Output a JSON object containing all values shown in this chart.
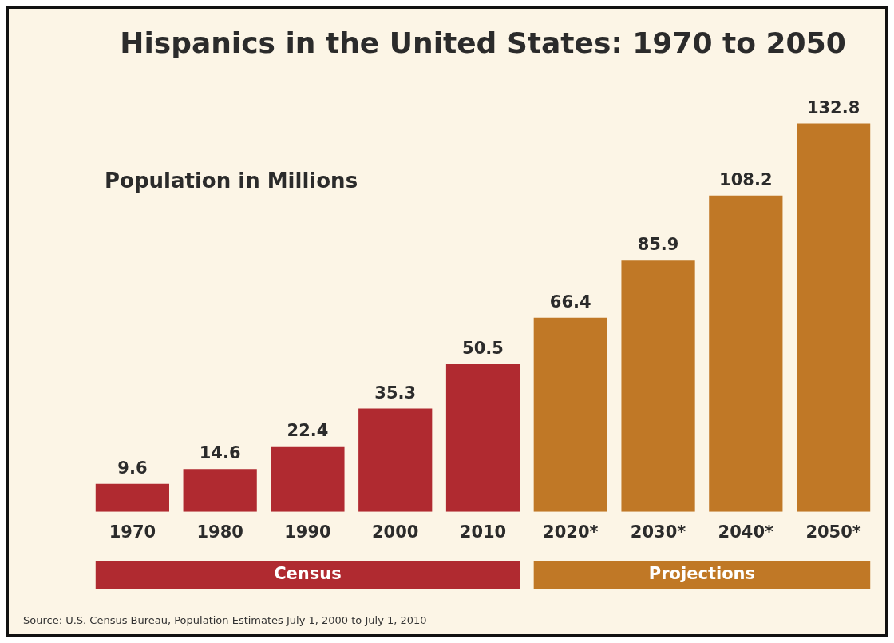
{
  "chart_data": {
    "type": "bar",
    "title": "Hispanics in the United States: 1970 to 2050",
    "subtitle": "Population in Millions",
    "categories": [
      "1970",
      "1980",
      "1990",
      "2000",
      "2010",
      "2020*",
      "2030*",
      "2040*",
      "2050*"
    ],
    "series": [
      {
        "name": "Census",
        "color": "#b02a30",
        "values": [
          9.6,
          14.6,
          22.4,
          35.3,
          50.5,
          null,
          null,
          null,
          null
        ]
      },
      {
        "name": "Projections",
        "color": "#c07826",
        "values": [
          null,
          null,
          null,
          null,
          null,
          66.4,
          85.9,
          108.2,
          132.8
        ]
      }
    ],
    "data_labels": true,
    "grid": false,
    "legend": "bottom",
    "annotations": [
      "Source: U.S. Census Bureau, Population Estimates July 1, 2000 to July 1, 2010"
    ]
  }
}
